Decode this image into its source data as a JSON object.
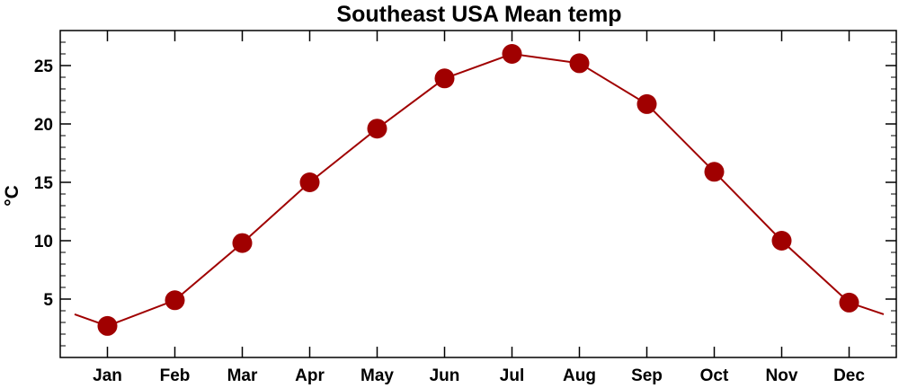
{
  "chart_data": {
    "type": "line",
    "title": "Southeast USA Mean temp",
    "ylabel": "°C",
    "xlabel": "",
    "categories": [
      "Jan",
      "Feb",
      "Mar",
      "Apr",
      "May",
      "Jun",
      "Jul",
      "Aug",
      "Sep",
      "Oct",
      "Nov",
      "Dec"
    ],
    "series": [
      {
        "values": [
          2.7,
          4.9,
          9.8,
          15.0,
          19.6,
          23.9,
          26.0,
          25.2,
          21.7,
          15.9,
          10.0,
          4.7
        ]
      }
    ],
    "line_extension": {
      "before_jan": 3.7,
      "after_dec": 3.7
    },
    "ylim": [
      0,
      28
    ],
    "yticks": [
      5,
      10,
      15,
      20,
      25
    ],
    "y_minor_step": 1,
    "grid": false,
    "legend": "none",
    "colors": {
      "series": "#a00000",
      "axes": "#000000"
    }
  }
}
